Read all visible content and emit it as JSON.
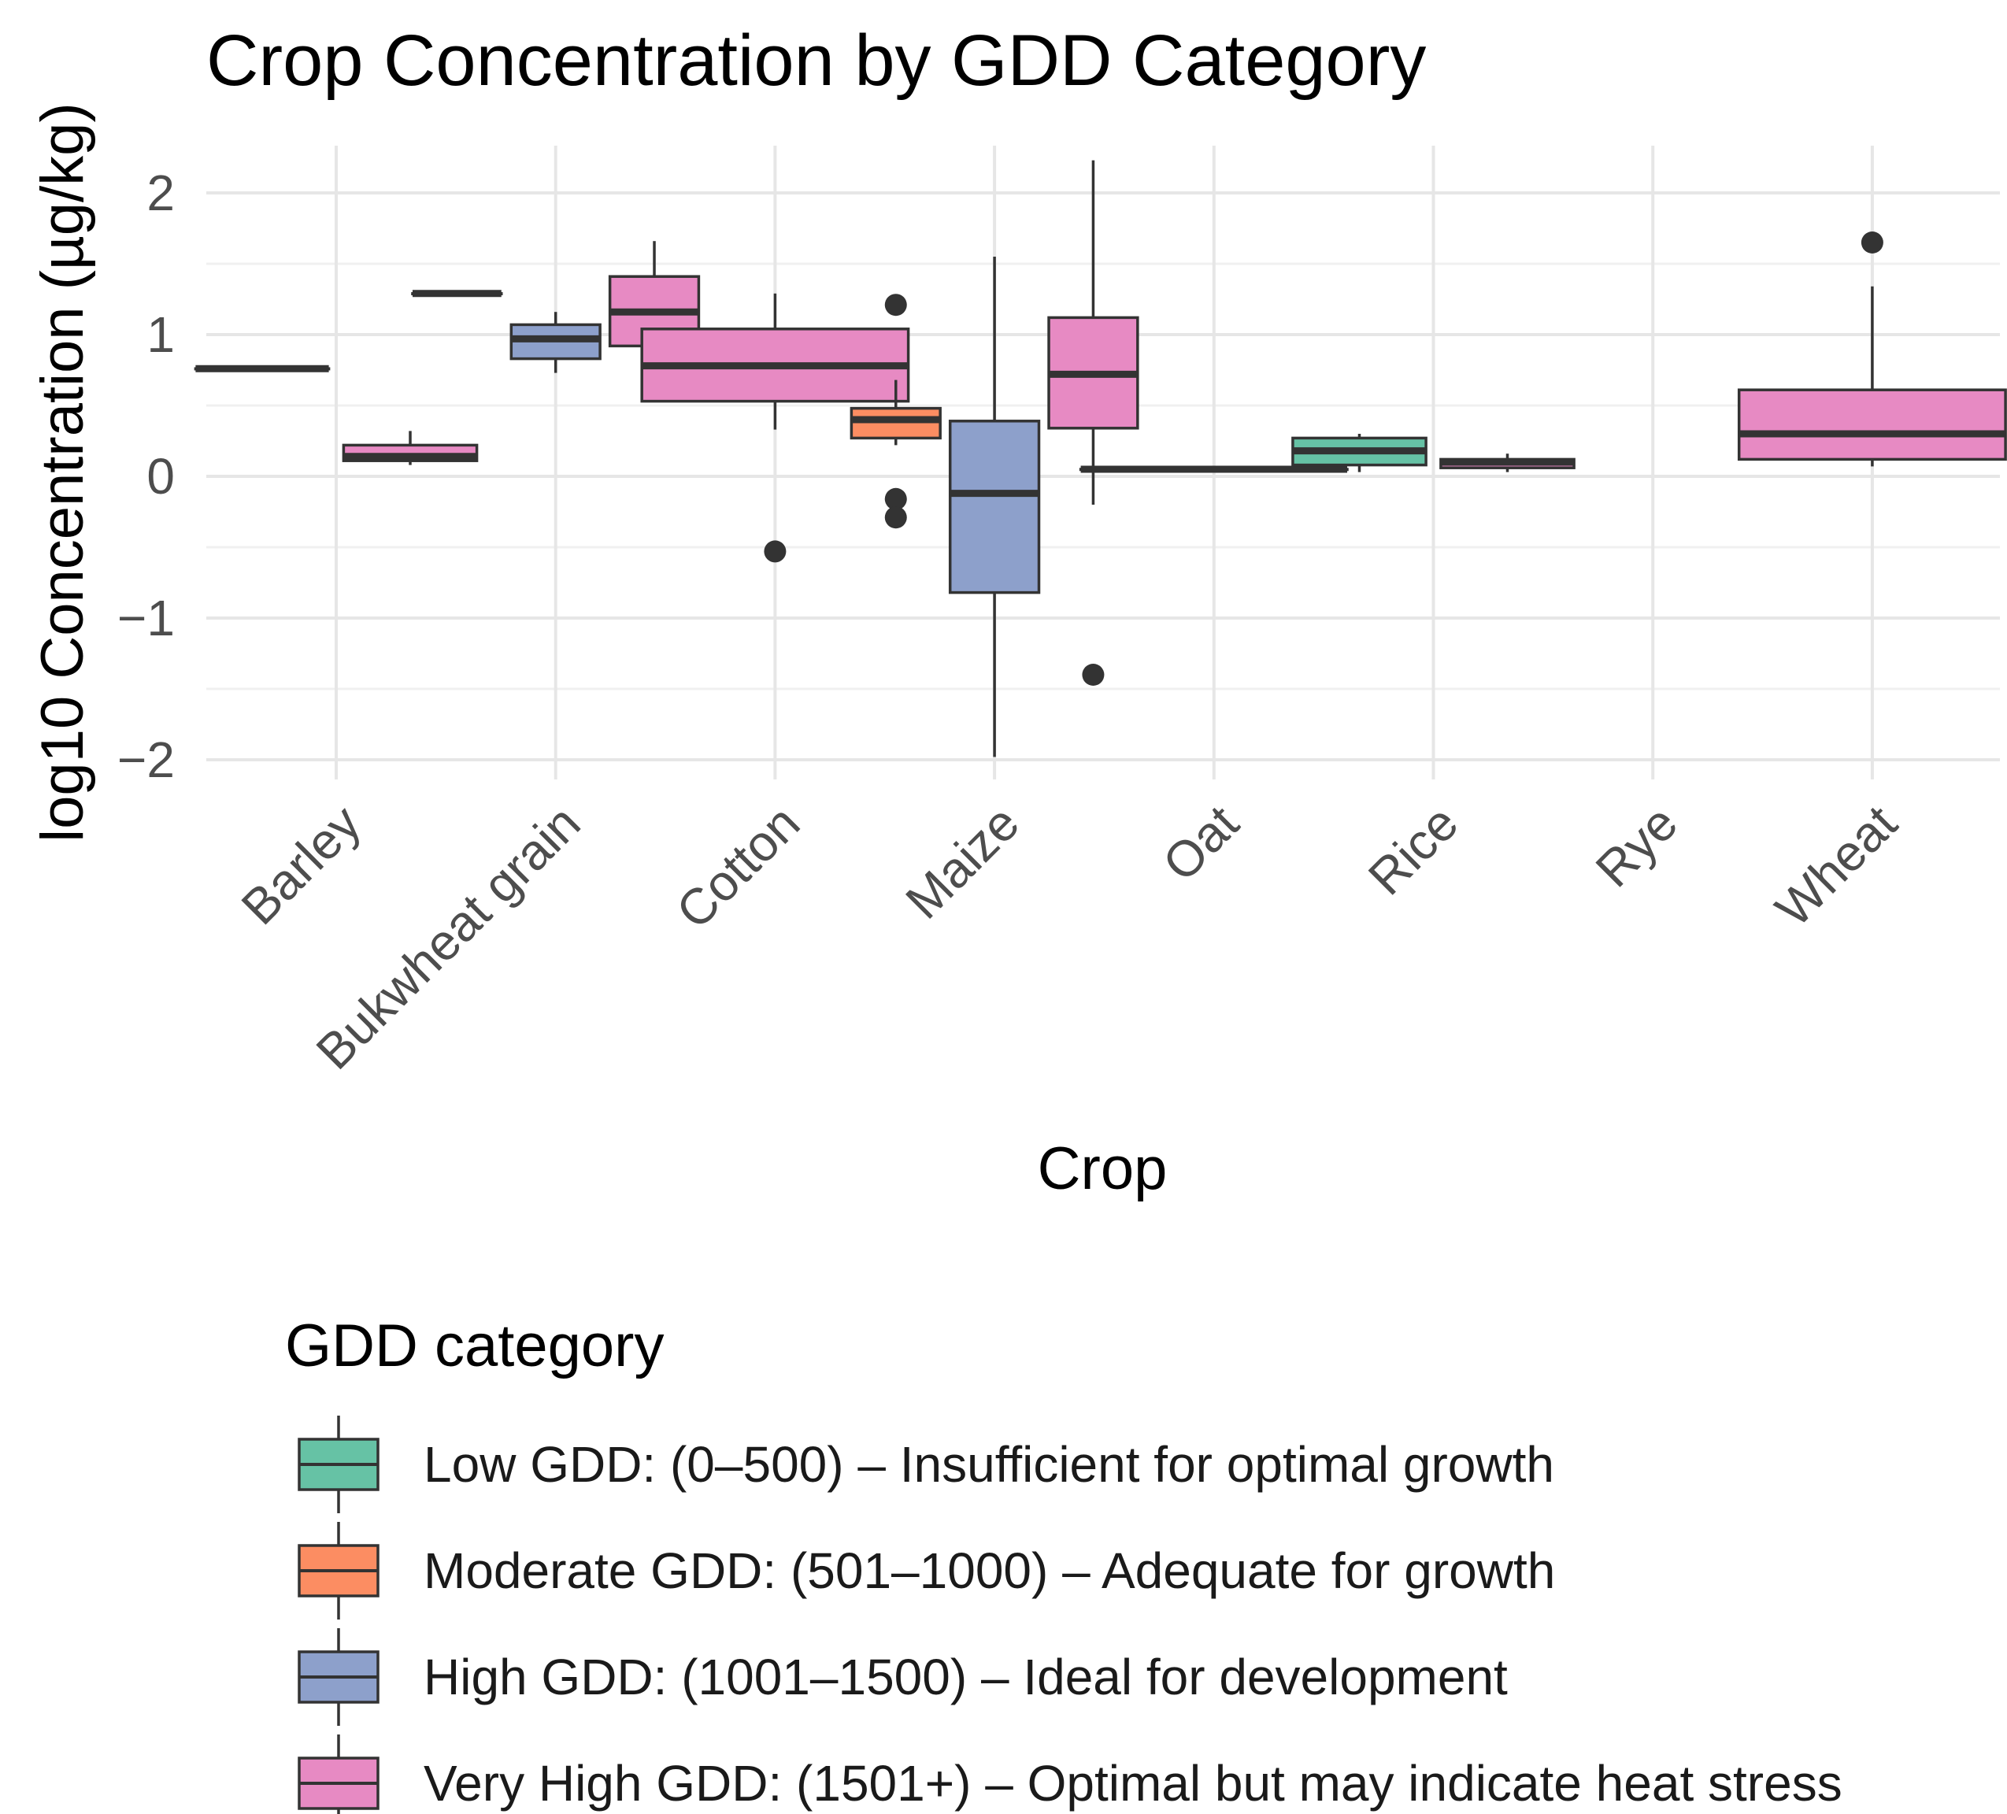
{
  "chart_data": {
    "type": "boxplot",
    "title": "Crop Concentration by GDD Category",
    "xlabel": "Crop",
    "ylabel": "log10 Concentration (µg/kg)",
    "ylim": [
      -2.1,
      2.25
    ],
    "yticks": [
      -2,
      -1,
      0,
      1,
      2
    ],
    "ytick_labels": [
      "−2",
      "−1",
      "0",
      "1",
      "2"
    ],
    "grid": true,
    "categories": [
      "Barley",
      "Bukwheat grain",
      "Cotton",
      "Maize",
      "Oat",
      "Rice",
      "Rye",
      "Wheat"
    ],
    "legend": {
      "title": "GDD category",
      "position": "bottom",
      "entries": [
        {
          "key": "low",
          "label": "Low GDD: (0–500) – Insufficient for optimal growth",
          "color": "#66c2a5"
        },
        {
          "key": "moderate",
          "label": "Moderate GDD: (501–1000) – Adequate for growth",
          "color": "#fc8d62"
        },
        {
          "key": "high",
          "label": "High GDD: (1001–1500) – Ideal for development",
          "color": "#8da0cb"
        },
        {
          "key": "veryhigh",
          "label": "Very High GDD: (1501+) – Optimal but may indicate heat stress",
          "color": "#e78ac3"
        }
      ]
    },
    "boxes": [
      {
        "crop": "Barley",
        "group": "moderate",
        "slot": 0,
        "slots": 2,
        "min": 0.76,
        "q1": 0.76,
        "median": 0.76,
        "q3": 0.76,
        "max": 0.76,
        "outliers": []
      },
      {
        "crop": "Barley",
        "group": "veryhigh",
        "slot": 1,
        "slots": 2,
        "min": 0.08,
        "q1": 0.11,
        "median": 0.14,
        "q3": 0.22,
        "max": 0.32,
        "outliers": []
      },
      {
        "crop": "Bukwheat grain",
        "group": "moderate",
        "slot": 0,
        "slots": 3,
        "min": 1.29,
        "q1": 1.29,
        "median": 1.29,
        "q3": 1.29,
        "max": 1.29,
        "outliers": []
      },
      {
        "crop": "Bukwheat grain",
        "group": "high",
        "slot": 1,
        "slots": 3,
        "min": 0.73,
        "q1": 0.83,
        "median": 0.97,
        "q3": 1.07,
        "max": 1.16,
        "outliers": []
      },
      {
        "crop": "Bukwheat grain",
        "group": "veryhigh",
        "slot": 2,
        "slots": 3,
        "min": 0.73,
        "q1": 0.92,
        "median": 1.16,
        "q3": 1.41,
        "max": 1.66,
        "outliers": []
      },
      {
        "crop": "Cotton",
        "group": "veryhigh",
        "slot": 0,
        "slots": 1,
        "min": 0.33,
        "q1": 0.53,
        "median": 0.78,
        "q3": 1.04,
        "max": 1.29,
        "outliers": [
          -0.53
        ]
      },
      {
        "crop": "Maize",
        "group": "moderate",
        "slot": 0,
        "slots": 3,
        "min": 0.22,
        "q1": 0.27,
        "median": 0.4,
        "q3": 0.48,
        "max": 0.68,
        "outliers": [
          1.21,
          -0.16,
          -0.29
        ]
      },
      {
        "crop": "Maize",
        "group": "high",
        "slot": 1,
        "slots": 3,
        "min": -1.98,
        "q1": -0.82,
        "median": -0.12,
        "q3": 0.39,
        "max": 1.55,
        "outliers": []
      },
      {
        "crop": "Maize",
        "group": "veryhigh",
        "slot": 2,
        "slots": 3,
        "min": -0.2,
        "q1": 0.34,
        "median": 0.72,
        "q3": 1.12,
        "max": 2.23,
        "outliers": [
          -1.4
        ]
      },
      {
        "crop": "Oat",
        "group": "veryhigh",
        "slot": 0,
        "slots": 1,
        "min": 0.05,
        "q1": 0.05,
        "median": 0.05,
        "q3": 0.05,
        "max": 0.05,
        "outliers": []
      },
      {
        "crop": "Rice",
        "group": "low",
        "slot": 0,
        "slots": 2,
        "min": 0.03,
        "q1": 0.08,
        "median": 0.18,
        "q3": 0.27,
        "max": 0.3,
        "outliers": []
      },
      {
        "crop": "Rice",
        "group": "veryhigh",
        "slot": 1,
        "slots": 2,
        "min": 0.03,
        "q1": 0.06,
        "median": 0.1,
        "q3": 0.12,
        "max": 0.16,
        "outliers": []
      },
      {
        "crop": "Wheat",
        "group": "veryhigh",
        "slot": 0,
        "slots": 1,
        "min": 0.07,
        "q1": 0.12,
        "median": 0.3,
        "q3": 0.61,
        "max": 1.34,
        "outliers": [
          1.65
        ]
      }
    ]
  }
}
